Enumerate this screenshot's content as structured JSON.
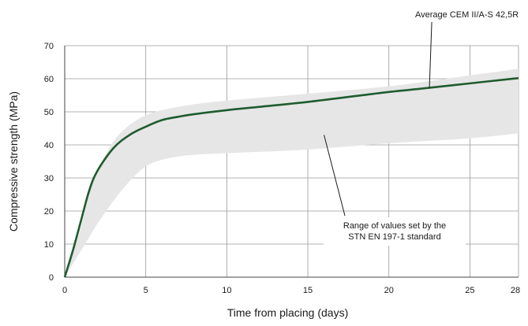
{
  "chart_data": {
    "type": "line",
    "title": "",
    "xlabel": "Time from placing (days)",
    "ylabel": "Compressive strength (MPa)",
    "xlim": [
      0,
      28
    ],
    "ylim": [
      0,
      70
    ],
    "x_ticks": [
      0,
      5,
      10,
      15,
      20,
      25,
      28
    ],
    "y_ticks": [
      0,
      10,
      20,
      30,
      40,
      50,
      60,
      70
    ],
    "grid": true,
    "series": [
      {
        "name": "Average CEM II/A-S 42,5R",
        "color": "#1f5c2e",
        "x": [
          0,
          0.5,
          1,
          1.5,
          2,
          3,
          4,
          5,
          6,
          7,
          8,
          10,
          12,
          15,
          18,
          20,
          22,
          25,
          28
        ],
        "y": [
          0,
          8,
          17,
          26,
          32,
          39,
          43,
          45.5,
          47.5,
          48.5,
          49.3,
          50.5,
          51.5,
          53,
          54.8,
          56,
          57,
          58.6,
          60.2
        ]
      }
    ],
    "range_band": {
      "name": "Range of values set by the STN EN 197-1 standard",
      "color": "#e6e6e6",
      "x": [
        0,
        1,
        1.5,
        2,
        3,
        4,
        5,
        6,
        7,
        8,
        10,
        15,
        20,
        25,
        28
      ],
      "upper": [
        0,
        15,
        26,
        32,
        41,
        46,
        49,
        50.5,
        51.5,
        52.3,
        53.4,
        55.5,
        57.7,
        61,
        63
      ],
      "lower": [
        0,
        8,
        12,
        16,
        23,
        29,
        33.5,
        35.5,
        36.5,
        37,
        37.5,
        38.6,
        40.5,
        42,
        43.5
      ]
    },
    "annotations": [
      {
        "text_lines": [
          "Average CEM II/A-S 42,5R"
        ],
        "points_to": [
          22.5,
          57.2
        ]
      },
      {
        "text_lines": [
          "Range of values set by the",
          "STN EN 197-1 standard"
        ],
        "points_to": [
          16,
          43
        ]
      }
    ]
  }
}
